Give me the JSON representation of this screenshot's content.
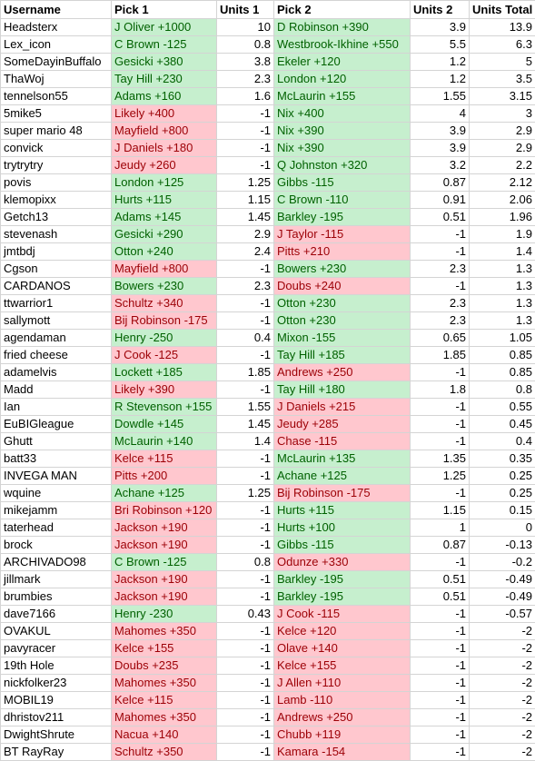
{
  "headers": [
    "Username",
    "Pick 1",
    "Units 1",
    "Pick 2",
    "Units 2",
    "Units Total"
  ],
  "rows": [
    [
      "Headsterx",
      "J Oliver +1000",
      "10",
      "D Robinson +390",
      "3.9",
      "13.9"
    ],
    [
      "Lex_icon",
      "C Brown -125",
      "0.8",
      "Westbrook-Ikhine +550",
      "5.5",
      "6.3"
    ],
    [
      "SomeDayinBuffalo",
      "Gesicki +380",
      "3.8",
      "Ekeler +120",
      "1.2",
      "5"
    ],
    [
      "ThaWoj",
      "Tay Hill +230",
      "2.3",
      "London +120",
      "1.2",
      "3.5"
    ],
    [
      "tennelson55",
      "Adams +160",
      "1.6",
      "McLaurin +155",
      "1.55",
      "3.15"
    ],
    [
      "5mike5",
      "Likely +400",
      "-1",
      "Nix +400",
      "4",
      "3"
    ],
    [
      "super mario 48",
      "Mayfield +800",
      "-1",
      "Nix +390",
      "3.9",
      "2.9"
    ],
    [
      "convick",
      "J Daniels +180",
      "-1",
      "Nix +390",
      "3.9",
      "2.9"
    ],
    [
      "trytrytry",
      "Jeudy +260",
      "-1",
      "Q Johnston +320",
      "3.2",
      "2.2"
    ],
    [
      "povis",
      "London +125",
      "1.25",
      "Gibbs -115",
      "0.87",
      "2.12"
    ],
    [
      "klemopixx",
      "Hurts +115",
      "1.15",
      "C Brown -110",
      "0.91",
      "2.06"
    ],
    [
      "Getch13",
      "Adams +145",
      "1.45",
      "Barkley -195",
      "0.51",
      "1.96"
    ],
    [
      "stevenash",
      "Gesicki +290",
      "2.9",
      "J Taylor -115",
      "-1",
      "1.9"
    ],
    [
      "jmtbdj",
      "Otton +240",
      "2.4",
      "Pitts +210",
      "-1",
      "1.4"
    ],
    [
      "Cgson",
      "Mayfield +800",
      "-1",
      "Bowers +230",
      "2.3",
      "1.3"
    ],
    [
      "CARDANOS",
      "Bowers +230",
      "2.3",
      "Doubs +240",
      "-1",
      "1.3"
    ],
    [
      "ttwarrior1",
      "Schultz +340",
      "-1",
      "Otton +230",
      "2.3",
      "1.3"
    ],
    [
      "sallymott",
      "Bij Robinson -175",
      "-1",
      "Otton +230",
      "2.3",
      "1.3"
    ],
    [
      "agendaman",
      "Henry -250",
      "0.4",
      "Mixon -155",
      "0.65",
      "1.05"
    ],
    [
      "fried cheese",
      "J Cook -125",
      "-1",
      "Tay Hill +185",
      "1.85",
      "0.85"
    ],
    [
      "adamelvis",
      "Lockett +185",
      "1.85",
      "Andrews +250",
      "-1",
      "0.85"
    ],
    [
      "Madd",
      "Likely +390",
      "-1",
      "Tay Hill +180",
      "1.8",
      "0.8"
    ],
    [
      "Ian",
      "R Stevenson +155",
      "1.55",
      "J Daniels +215",
      "-1",
      "0.55"
    ],
    [
      "EuBIGleague",
      "Dowdle +145",
      "1.45",
      "Jeudy +285",
      "-1",
      "0.45"
    ],
    [
      "Ghutt",
      "McLaurin +140",
      "1.4",
      "Chase -115",
      "-1",
      "0.4"
    ],
    [
      "batt33",
      "Kelce +115",
      "-1",
      "McLaurin +135",
      "1.35",
      "0.35"
    ],
    [
      "INVEGA MAN",
      "Pitts +200",
      "-1",
      "Achane +125",
      "1.25",
      "0.25"
    ],
    [
      "wquine",
      "Achane +125",
      "1.25",
      "Bij Robinson -175",
      "-1",
      "0.25"
    ],
    [
      "mikejamm",
      "Bri Robinson +120",
      "-1",
      "Hurts +115",
      "1.15",
      "0.15"
    ],
    [
      "taterhead",
      "Jackson +190",
      "-1",
      "Hurts +100",
      "1",
      "0"
    ],
    [
      "brock",
      "Jackson +190",
      "-1",
      "Gibbs -115",
      "0.87",
      "-0.13"
    ],
    [
      "ARCHIVADO98",
      "C Brown -125",
      "0.8",
      "Odunze +330",
      "-1",
      "-0.2"
    ],
    [
      "jillmark",
      "Jackson +190",
      "-1",
      "Barkley -195",
      "0.51",
      "-0.49"
    ],
    [
      "brumbies",
      "Jackson +190",
      "-1",
      "Barkley -195",
      "0.51",
      "-0.49"
    ],
    [
      "dave7166",
      "Henry -230",
      "0.43",
      "J Cook -115",
      "-1",
      "-0.57"
    ],
    [
      "OVAKUL",
      "Mahomes +350",
      "-1",
      "Kelce +120",
      "-1",
      "-2"
    ],
    [
      "pavyracer",
      "Kelce +155",
      "-1",
      "Olave +140",
      "-1",
      "-2"
    ],
    [
      "19th Hole",
      "Doubs +235",
      "-1",
      "Kelce +155",
      "-1",
      "-2"
    ],
    [
      "nickfolker23",
      "Mahomes +350",
      "-1",
      "J Allen +110",
      "-1",
      "-2"
    ],
    [
      "MOBIL19",
      "Kelce +115",
      "-1",
      "Lamb -110",
      "-1",
      "-2"
    ],
    [
      "dhristov211",
      "Mahomes +350",
      "-1",
      "Andrews +250",
      "-1",
      "-2"
    ],
    [
      "DwightShrute",
      "Nacua +140",
      "-1",
      "Chubb +119",
      "-1",
      "-2"
    ],
    [
      "BT RayRay",
      "Schultz +350",
      "-1",
      "Kamara -154",
      "-1",
      "-2"
    ]
  ],
  "colors": {
    "win_fill": "#c6efce",
    "win_text": "#006100",
    "loss_fill": "#ffc7ce",
    "loss_text": "#9c0006"
  }
}
